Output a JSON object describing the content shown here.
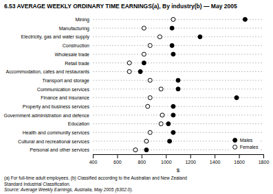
{
  "chart_data": {
    "type": "dot",
    "orientation": "horizontal",
    "title": "6.53 AVERAGE WEEKLY ORDINARY TIME EARNINGS(a), By industry(b) — May 2005",
    "x_label": "$",
    "categories": [
      "Mining",
      "Manufacturing",
      "Electricity, gas and water supply",
      "Construction",
      "Wholesale trade",
      "Retail trade",
      "Accommodation, cafes and restaurants",
      "Transport and storage",
      "Communication services",
      "Finance and insurance",
      "Property and business services",
      "Government administration and defence",
      "Education",
      "Health and community services",
      "Cultural and recreational services",
      "Personal and other services"
    ],
    "series": [
      {
        "name": "Males",
        "color": "#000000",
        "marker": "circle",
        "values": [
          1650,
          1050,
          1280,
          1050,
          1060,
          820,
          790,
          1100,
          1100,
          1580,
          1060,
          1060,
          1020,
          1060,
          1030,
          840
        ]
      },
      {
        "name": "Females",
        "color": "#000000",
        "marker": "open_circle",
        "values": [
          1060,
          820,
          950,
          870,
          820,
          700,
          700,
          870,
          960,
          870,
          850,
          970,
          960,
          870,
          840,
          750
        ]
      }
    ],
    "xlim": [
      400,
      1800
    ],
    "xticks": [
      400,
      600,
      800,
      1000,
      1200,
      1400,
      1600,
      1800
    ],
    "grid": false,
    "legend": "lower right",
    "annotations": [
      "(a) For full-time adult employees.  (b) Classified according to the Australian and New Zealand",
      "Standard Industrial Classification.",
      "Source: Average Weekly Earnings, Australia, May 2005 (6302.0)."
    ]
  }
}
